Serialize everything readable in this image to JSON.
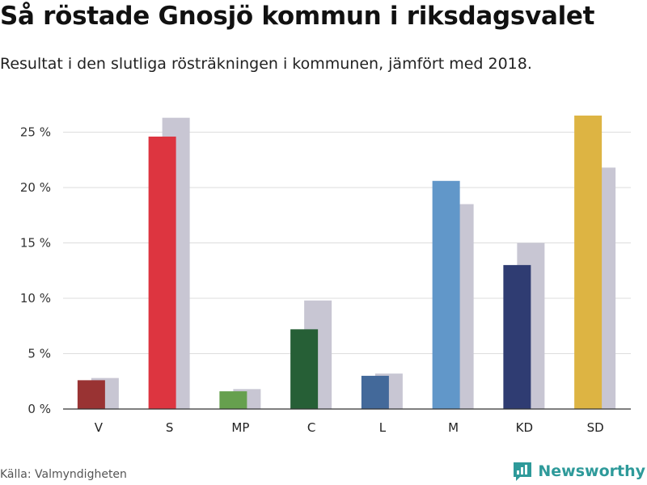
{
  "header": {
    "title": "Så röstade Gnosjö kommun i riksdagsvalet",
    "subtitle": "Resultat i den slutliga rösträkningen i kommunen, jämfört med 2018."
  },
  "footer": {
    "source": "Källa: Valmyndigheten",
    "brand": "Newsworthy",
    "brand_icon": "bar-chart-speech-bubble-icon",
    "brand_color": "#2e9a9a"
  },
  "chart_data": {
    "type": "bar",
    "title": "Så röstade Gnosjö kommun i riksdagsvalet",
    "subtitle": "Resultat i den slutliga rösträkningen i kommunen, jämfört med 2018.",
    "categories": [
      "V",
      "S",
      "MP",
      "C",
      "L",
      "M",
      "KD",
      "SD"
    ],
    "series": [
      {
        "values": [
          2.6,
          24.6,
          1.6,
          7.2,
          3.0,
          20.6,
          13.0,
          26.5
        ],
        "colors": [
          "#993333",
          "#dd3540",
          "#66a04e",
          "#265f36",
          "#43699a",
          "#6197c9",
          "#2f3c72",
          "#ddb443"
        ]
      },
      {
        "values": [
          2.8,
          26.3,
          1.8,
          9.8,
          3.2,
          18.5,
          15.0,
          21.8
        ],
        "color": "#c8c6d3"
      }
    ],
    "yticks": [
      "0 %",
      "5 %",
      "10 %",
      "15 %",
      "20 %",
      "25 %"
    ],
    "ytick_values": [
      0,
      5,
      10,
      15,
      20,
      25
    ],
    "ylim": [
      0,
      28
    ],
    "grid": true,
    "xlabel": "",
    "ylabel": ""
  }
}
